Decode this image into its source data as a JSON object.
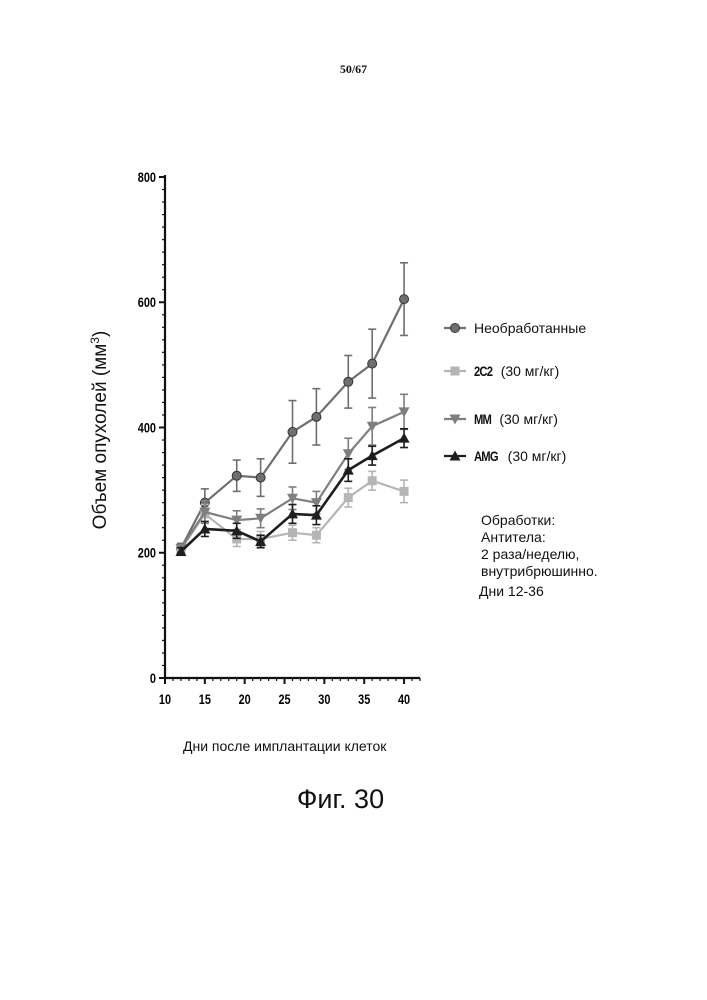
{
  "page": {
    "number": "50/67"
  },
  "chart_data": {
    "type": "line",
    "ylabel": "Объем опухолей (мм",
    "ylabel_sup": "3",
    "ylabel_close": ")",
    "xlabel": "Дни после имплантации клеток",
    "xlim": [
      10,
      42
    ],
    "ylim": [
      0,
      800
    ],
    "x_ticks": [
      10,
      15,
      20,
      25,
      30,
      35,
      40
    ],
    "y_ticks": [
      0,
      200,
      400,
      600,
      800
    ],
    "legend_position": "right",
    "series": [
      {
        "name": "Необработанные",
        "dose": "",
        "marker": "circle",
        "color": "#6f6f6f",
        "x": [
          12,
          15,
          19,
          22,
          26,
          29,
          33,
          36,
          40
        ],
        "y": [
          207,
          280,
          323,
          320,
          393,
          417,
          473,
          502,
          605
        ],
        "err": [
          8,
          22,
          25,
          30,
          50,
          45,
          42,
          55,
          58
        ]
      },
      {
        "name": "2C2",
        "dose": "(30 мг/кг)",
        "marker": "square",
        "color": "#b5b5b5",
        "x": [
          12,
          15,
          19,
          22,
          26,
          29,
          33,
          36,
          40
        ],
        "y": [
          205,
          262,
          222,
          222,
          232,
          228,
          288,
          315,
          298
        ],
        "err": [
          6,
          15,
          12,
          12,
          12,
          12,
          15,
          15,
          18
        ]
      },
      {
        "name": "MM",
        "dose": "(30 мг/кг)",
        "marker": "triangle-down",
        "color": "#7f7f7f",
        "x": [
          12,
          15,
          19,
          22,
          26,
          29,
          33,
          36,
          40
        ],
        "y": [
          207,
          265,
          252,
          255,
          287,
          280,
          358,
          402,
          425
        ],
        "err": [
          6,
          18,
          15,
          15,
          18,
          18,
          25,
          30,
          28
        ]
      },
      {
        "name": "AMG",
        "dose": "(30 мг/кг)",
        "marker": "triangle-up",
        "color": "#1e1e1e",
        "x": [
          12,
          15,
          19,
          22,
          26,
          29,
          33,
          36,
          40
        ],
        "y": [
          202,
          238,
          235,
          218,
          262,
          260,
          332,
          355,
          383
        ],
        "err": [
          6,
          12,
          12,
          10,
          15,
          15,
          18,
          15,
          15
        ]
      }
    ]
  },
  "notes": {
    "line1": "Обработки:",
    "line2": "Антитела:",
    "line3": "2 раза/неделю,",
    "line4": "внутрибрюшинно.",
    "line5": "Дни 12-36"
  },
  "caption": "Фиг. 30"
}
